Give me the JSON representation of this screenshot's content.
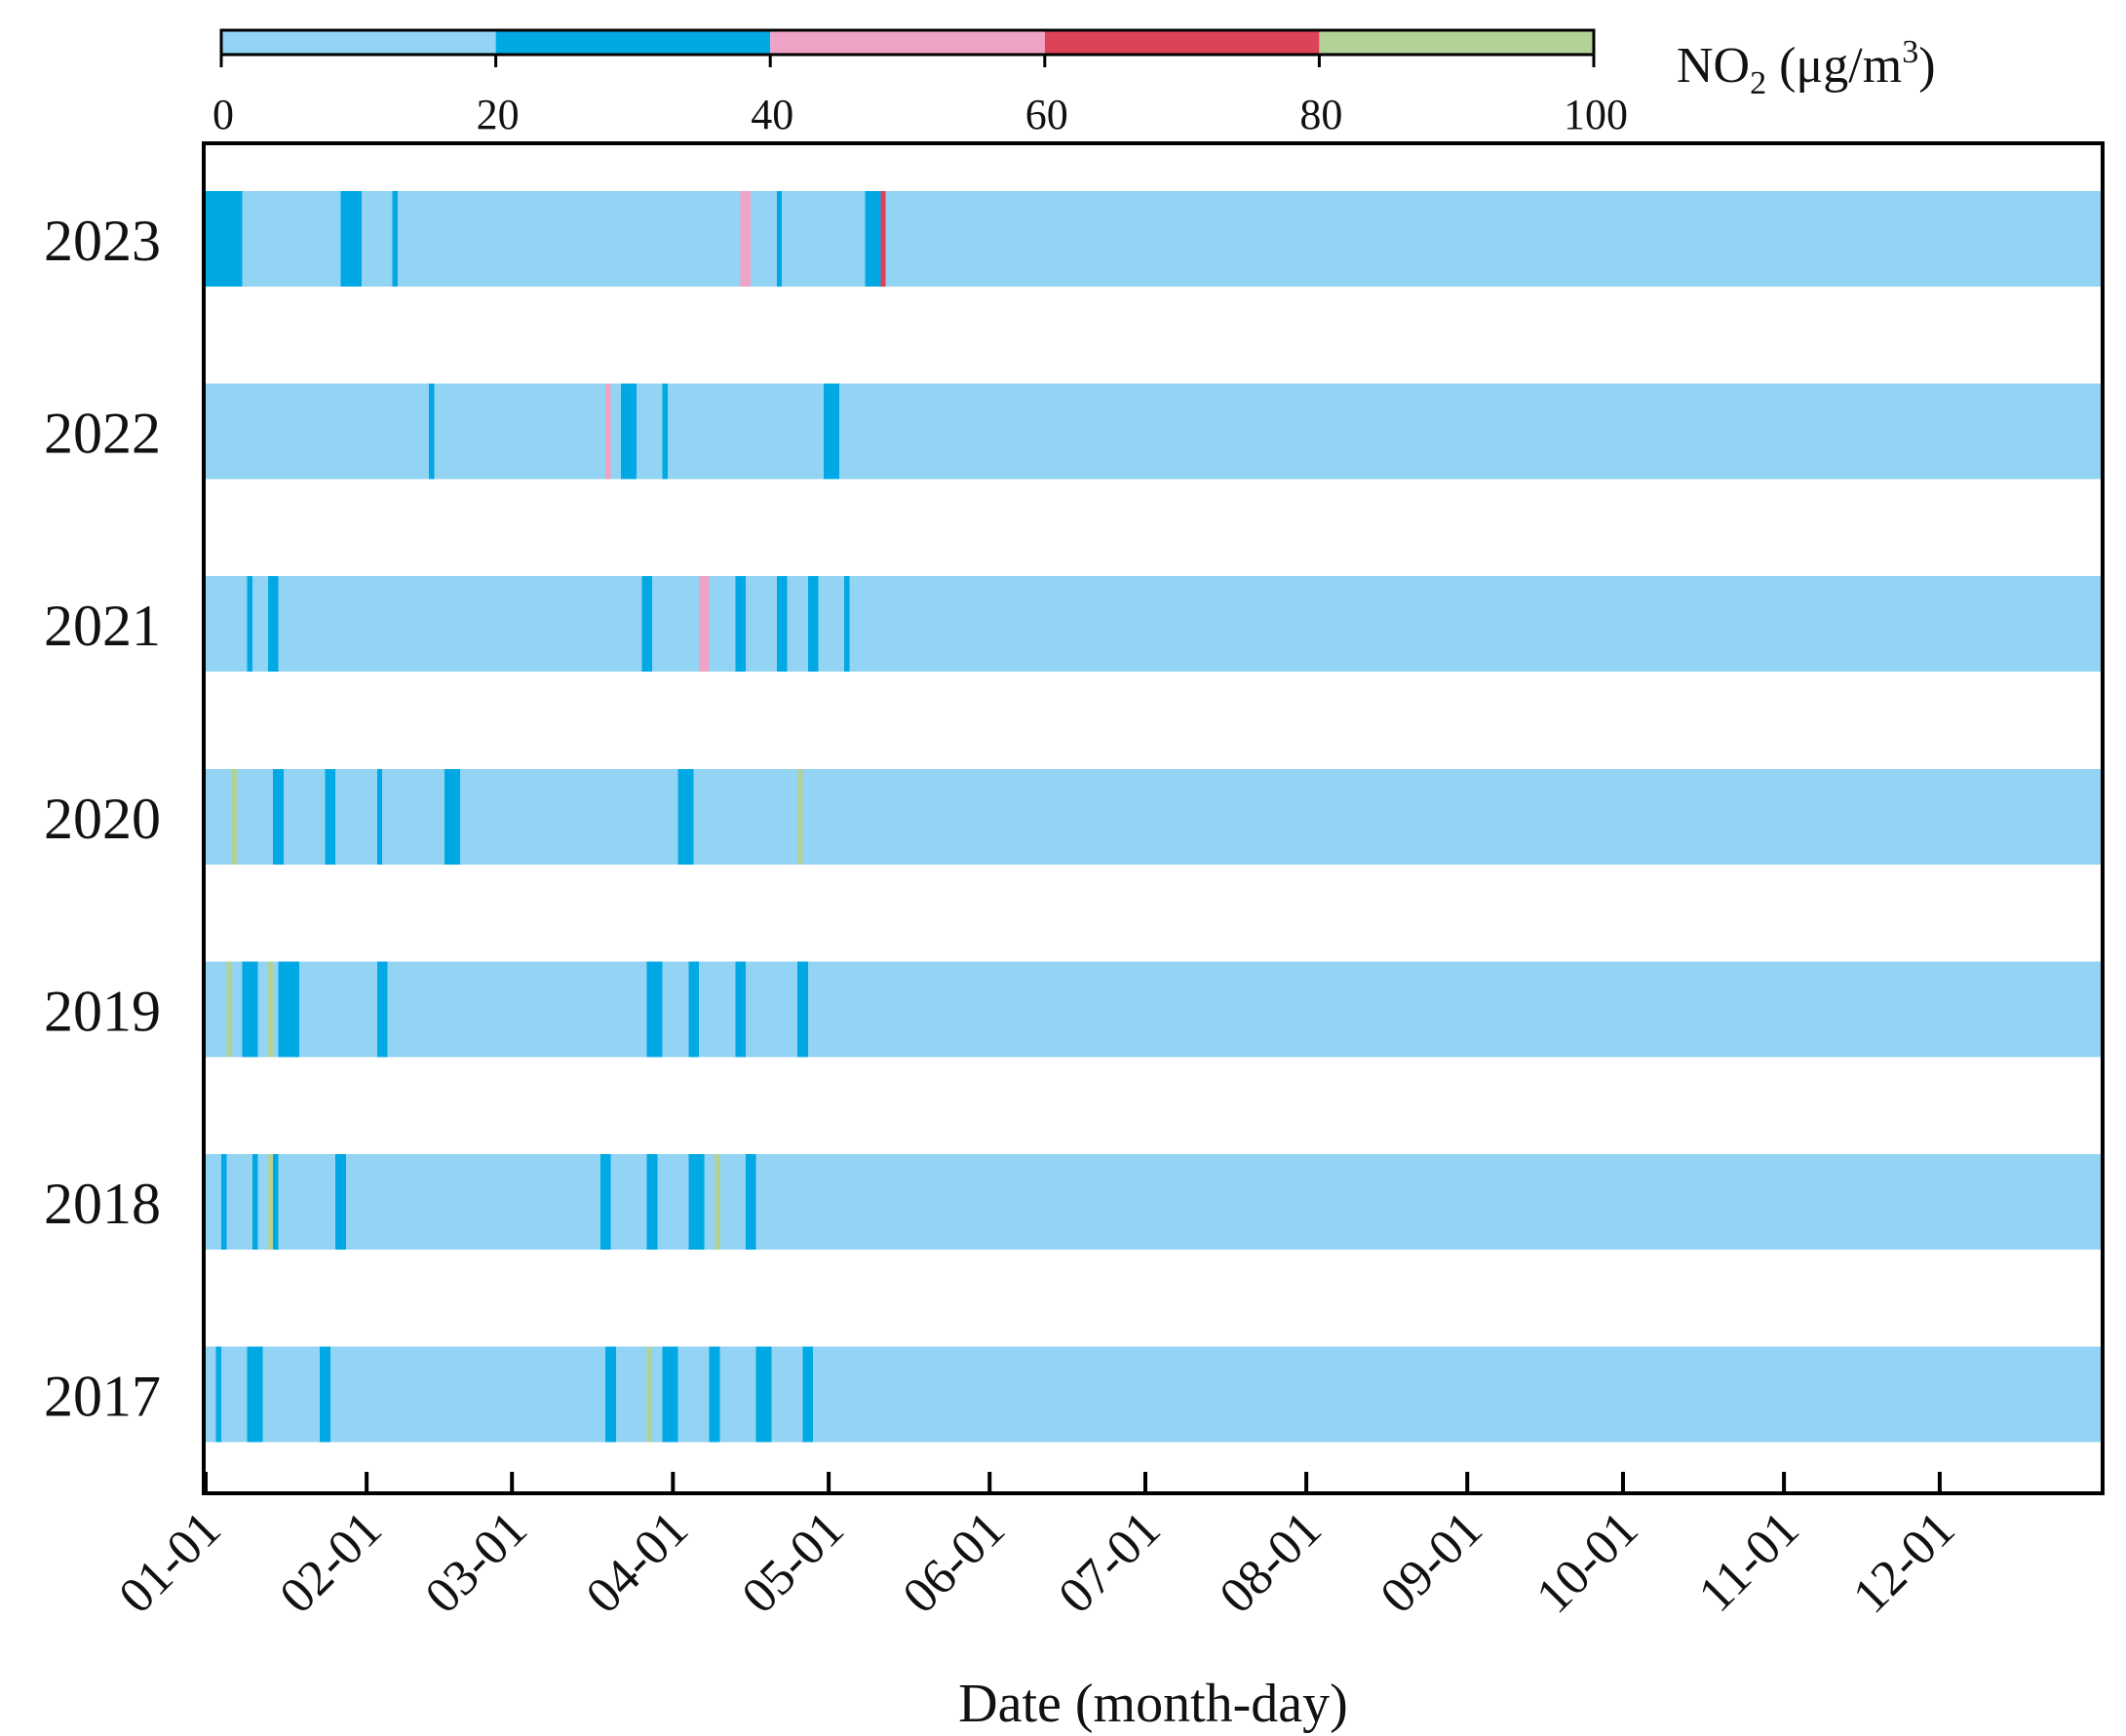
{
  "chart_data": {
    "type": "heatmap",
    "title": "",
    "colorbar": {
      "label_main": "NO",
      "label_sub": "2",
      "label_unit_open": " (μg/m",
      "label_sup": "3",
      "label_unit_close": ")",
      "ticks": [
        "0",
        "20",
        "40",
        "60",
        "80",
        "100"
      ],
      "range": [
        0,
        100
      ],
      "bins": [
        {
          "from": 0,
          "to": 20,
          "color": "#93d3f3"
        },
        {
          "from": 20,
          "to": 40,
          "color": "#00a9e3"
        },
        {
          "from": 40,
          "to": 60,
          "color": "#efa3c6"
        },
        {
          "from": 60,
          "to": 80,
          "color": "#dd4358"
        },
        {
          "from": 80,
          "to": 100,
          "color": "#b3d296"
        }
      ]
    },
    "xlabel": "Date (month-day)",
    "ylabel": "",
    "x_ticks": [
      {
        "label": "01-01",
        "day": 1
      },
      {
        "label": "02-01",
        "day": 32
      },
      {
        "label": "03-01",
        "day": 60
      },
      {
        "label": "04-01",
        "day": 91
      },
      {
        "label": "05-01",
        "day": 121
      },
      {
        "label": "06-01",
        "day": 152
      },
      {
        "label": "07-01",
        "day": 182
      },
      {
        "label": "08-01",
        "day": 213
      },
      {
        "label": "09-01",
        "day": 244
      },
      {
        "label": "10-01",
        "day": 274
      },
      {
        "label": "11-01",
        "day": 305
      },
      {
        "label": "12-01",
        "day": 335
      }
    ],
    "days_per_year": 365,
    "years": [
      {
        "year": "2023",
        "runs": [
          [
            7,
            2
          ],
          [
            3,
            1
          ],
          [
            1,
            1
          ],
          [
            2,
            1
          ],
          [
            3,
            1
          ],
          [
            2,
            1
          ],
          [
            1,
            1
          ],
          [
            3,
            1
          ],
          [
            2,
            1
          ],
          [
            2,
            1
          ],
          [
            3,
            2
          ],
          [
            1,
            2
          ],
          [
            4,
            1
          ],
          [
            2,
            1
          ],
          [
            1,
            2
          ],
          [
            2,
            1
          ],
          [
            3,
            1
          ],
          [
            3,
            1
          ],
          [
            4,
            1
          ],
          [
            6,
            1
          ],
          [
            3,
            1
          ],
          [
            2,
            1
          ],
          [
            4,
            1
          ],
          [
            6,
            1
          ],
          [
            2,
            1
          ],
          [
            4,
            1
          ],
          [
            2,
            1
          ],
          [
            6,
            1
          ],
          [
            3,
            1
          ],
          [
            5,
            1
          ],
          [
            9,
            1
          ],
          [
            2,
            1
          ],
          [
            2,
            3
          ],
          [
            2,
            1
          ],
          [
            3,
            1
          ],
          [
            1,
            2
          ],
          [
            2,
            1
          ],
          [
            2,
            1
          ],
          [
            3,
            1
          ],
          [
            1,
            1
          ],
          [
            2,
            1
          ],
          [
            2,
            1
          ],
          [
            1,
            1
          ],
          [
            3,
            1
          ],
          [
            3,
            2
          ],
          [
            1,
            4
          ],
          [
            2,
            1
          ]
        ]
      },
      {
        "year": "2022",
        "runs": [
          [
            7,
            1
          ],
          [
            3,
            1
          ],
          [
            2,
            1
          ],
          [
            3,
            1
          ],
          [
            2,
            1
          ],
          [
            2,
            1
          ],
          [
            3,
            1
          ],
          [
            2,
            1
          ],
          [
            2,
            1
          ],
          [
            1,
            1
          ],
          [
            4,
            1
          ],
          [
            3,
            1
          ],
          [
            3,
            1
          ],
          [
            2,
            1
          ],
          [
            4,
            1
          ],
          [
            1,
            2
          ],
          [
            2,
            1
          ],
          [
            3,
            1
          ],
          [
            5,
            1
          ],
          [
            2,
            1
          ],
          [
            1,
            1
          ],
          [
            3,
            1
          ],
          [
            5,
            1
          ],
          [
            2,
            1
          ],
          [
            3,
            1
          ],
          [
            6,
            1
          ],
          [
            1,
            1
          ],
          [
            1,
            3
          ],
          [
            2,
            1
          ],
          [
            3,
            2
          ],
          [
            5,
            1
          ],
          [
            1,
            2
          ],
          [
            2,
            1
          ],
          [
            2,
            1
          ],
          [
            3,
            1
          ],
          [
            4,
            1
          ],
          [
            2,
            1
          ],
          [
            2,
            1
          ],
          [
            2,
            1
          ],
          [
            3,
            1
          ],
          [
            3,
            1
          ],
          [
            1,
            1
          ],
          [
            4,
            1
          ],
          [
            2,
            1
          ],
          [
            3,
            2
          ],
          [
            2,
            1
          ]
        ]
      },
      {
        "year": "2021",
        "runs": [
          [
            6,
            1
          ],
          [
            2,
            1
          ],
          [
            1,
            2
          ],
          [
            3,
            1
          ],
          [
            2,
            2
          ],
          [
            1,
            1
          ],
          [
            4,
            1
          ],
          [
            3,
            1
          ],
          [
            5,
            1
          ],
          [
            2,
            1
          ],
          [
            3,
            1
          ],
          [
            2,
            1
          ],
          [
            4,
            1
          ],
          [
            4,
            1
          ],
          [
            3,
            1
          ],
          [
            3,
            1
          ],
          [
            6,
            1
          ],
          [
            2,
            1
          ],
          [
            2,
            1
          ],
          [
            5,
            1
          ],
          [
            3,
            1
          ],
          [
            1,
            1
          ],
          [
            2,
            1
          ],
          [
            3,
            1
          ],
          [
            7,
            1
          ],
          [
            2,
            1
          ],
          [
            3,
            1
          ],
          [
            2,
            2
          ],
          [
            3,
            1
          ],
          [
            1,
            1
          ],
          [
            2,
            1
          ],
          [
            3,
            1
          ],
          [
            2,
            3
          ],
          [
            1,
            1
          ],
          [
            4,
            1
          ],
          [
            2,
            2
          ],
          [
            1,
            1
          ],
          [
            2,
            1
          ],
          [
            3,
            1
          ],
          [
            2,
            2
          ],
          [
            1,
            1
          ],
          [
            3,
            1
          ],
          [
            2,
            2
          ],
          [
            3,
            1
          ],
          [
            2,
            1
          ],
          [
            1,
            2
          ],
          [
            2,
            1
          ]
        ]
      },
      {
        "year": "2020",
        "runs": [
          [
            5,
            1
          ],
          [
            1,
            5
          ],
          [
            2,
            1
          ],
          [
            3,
            1
          ],
          [
            2,
            1
          ],
          [
            2,
            2
          ],
          [
            1,
            1
          ],
          [
            3,
            1
          ],
          [
            4,
            1
          ],
          [
            2,
            2
          ],
          [
            5,
            1
          ],
          [
            3,
            1
          ],
          [
            1,
            2
          ],
          [
            2,
            1
          ],
          [
            3,
            1
          ],
          [
            2,
            1
          ],
          [
            4,
            1
          ],
          [
            1,
            1
          ],
          [
            3,
            2
          ],
          [
            2,
            1
          ],
          [
            5,
            1
          ],
          [
            3,
            1
          ],
          [
            2,
            1
          ],
          [
            4,
            1
          ],
          [
            1,
            1
          ],
          [
            2,
            1
          ],
          [
            6,
            1
          ],
          [
            3,
            1
          ],
          [
            2,
            1
          ],
          [
            4,
            1
          ],
          [
            2,
            1
          ],
          [
            3,
            1
          ],
          [
            1,
            1
          ],
          [
            2,
            1
          ],
          [
            3,
            2
          ],
          [
            1,
            1
          ],
          [
            2,
            1
          ],
          [
            3,
            1
          ],
          [
            2,
            1
          ],
          [
            4,
            1
          ],
          [
            1,
            1
          ],
          [
            2,
            1
          ],
          [
            3,
            1
          ],
          [
            2,
            1
          ],
          [
            1,
            5
          ],
          [
            2,
            1
          ]
        ]
      },
      {
        "year": "2019",
        "runs": [
          [
            4,
            1
          ],
          [
            1,
            5
          ],
          [
            2,
            1
          ],
          [
            3,
            2
          ],
          [
            2,
            1
          ],
          [
            1,
            5
          ],
          [
            1,
            1
          ],
          [
            4,
            2
          ],
          [
            3,
            1
          ],
          [
            2,
            1
          ],
          [
            5,
            1
          ],
          [
            3,
            1
          ],
          [
            2,
            1
          ],
          [
            2,
            2
          ],
          [
            1,
            1
          ],
          [
            4,
            1
          ],
          [
            3,
            1
          ],
          [
            5,
            1
          ],
          [
            2,
            1
          ],
          [
            2,
            1
          ],
          [
            3,
            1
          ],
          [
            2,
            1
          ],
          [
            6,
            1
          ],
          [
            4,
            1
          ],
          [
            3,
            1
          ],
          [
            2,
            1
          ],
          [
            4,
            1
          ],
          [
            5,
            1
          ],
          [
            2,
            1
          ],
          [
            2,
            1
          ],
          [
            3,
            2
          ],
          [
            3,
            1
          ],
          [
            2,
            1
          ],
          [
            2,
            2
          ],
          [
            1,
            1
          ],
          [
            4,
            1
          ],
          [
            2,
            1
          ],
          [
            2,
            2
          ],
          [
            3,
            1
          ],
          [
            1,
            1
          ],
          [
            2,
            1
          ],
          [
            4,
            1
          ],
          [
            2,
            2
          ],
          [
            1,
            1
          ],
          [
            3,
            1
          ],
          [
            2,
            1
          ]
        ]
      },
      {
        "year": "2018",
        "runs": [
          [
            3,
            1
          ],
          [
            1,
            2
          ],
          [
            3,
            1
          ],
          [
            2,
            1
          ],
          [
            1,
            2
          ],
          [
            2,
            1
          ],
          [
            1,
            5
          ],
          [
            1,
            2
          ],
          [
            2,
            1
          ],
          [
            4,
            1
          ],
          [
            3,
            1
          ],
          [
            2,
            1
          ],
          [
            2,
            2
          ],
          [
            1,
            1
          ],
          [
            3,
            1
          ],
          [
            2,
            1
          ],
          [
            4,
            1
          ],
          [
            5,
            1
          ],
          [
            3,
            1
          ],
          [
            2,
            1
          ],
          [
            4,
            1
          ],
          [
            3,
            1
          ],
          [
            6,
            1
          ],
          [
            2,
            1
          ],
          [
            3,
            1
          ],
          [
            5,
            1
          ],
          [
            2,
            1
          ],
          [
            1,
            1
          ],
          [
            3,
            1
          ],
          [
            2,
            2
          ],
          [
            1,
            1
          ],
          [
            4,
            1
          ],
          [
            2,
            1
          ],
          [
            2,
            2
          ],
          [
            3,
            1
          ],
          [
            1,
            1
          ],
          [
            2,
            1
          ],
          [
            3,
            2
          ],
          [
            2,
            1
          ],
          [
            1,
            5
          ],
          [
            2,
            1
          ],
          [
            3,
            1
          ],
          [
            2,
            2
          ],
          [
            1,
            1
          ],
          [
            4,
            1
          ],
          [
            2,
            1
          ]
        ]
      },
      {
        "year": "2017",
        "runs": [
          [
            2,
            1
          ],
          [
            1,
            2
          ],
          [
            3,
            1
          ],
          [
            2,
            1
          ],
          [
            3,
            2
          ],
          [
            2,
            1
          ],
          [
            4,
            1
          ],
          [
            3,
            1
          ],
          [
            2,
            1
          ],
          [
            2,
            2
          ],
          [
            1,
            1
          ],
          [
            5,
            1
          ],
          [
            3,
            1
          ],
          [
            2,
            1
          ],
          [
            4,
            1
          ],
          [
            6,
            1
          ],
          [
            3,
            1
          ],
          [
            2,
            1
          ],
          [
            5,
            1
          ],
          [
            3,
            1
          ],
          [
            4,
            1
          ],
          [
            2,
            1
          ],
          [
            3,
            1
          ],
          [
            5,
            1
          ],
          [
            2,
            1
          ],
          [
            3,
            1
          ],
          [
            2,
            2
          ],
          [
            1,
            1
          ],
          [
            3,
            1
          ],
          [
            2,
            1
          ],
          [
            1,
            5
          ],
          [
            2,
            1
          ],
          [
            3,
            2
          ],
          [
            1,
            1
          ],
          [
            2,
            1
          ],
          [
            3,
            1
          ],
          [
            2,
            2
          ],
          [
            1,
            1
          ],
          [
            4,
            1
          ],
          [
            2,
            1
          ],
          [
            3,
            2
          ],
          [
            1,
            1
          ],
          [
            2,
            1
          ],
          [
            3,
            1
          ],
          [
            2,
            2
          ]
        ]
      }
    ]
  }
}
